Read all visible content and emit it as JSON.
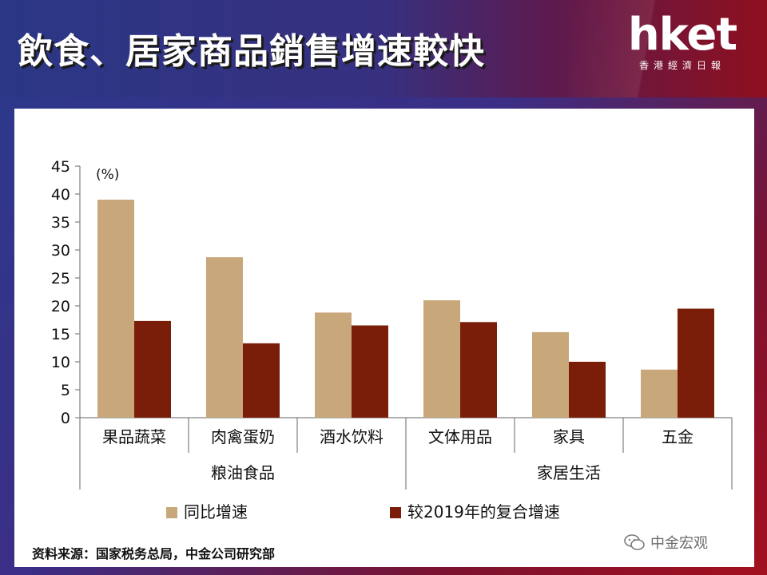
{
  "header": {
    "title": "飲食、居家商品銷售增速較快",
    "logo_text": "hket",
    "logo_sub": "香港經濟日報"
  },
  "colors": {
    "series_yoy": "#c8a77a",
    "series_cagr": "#7a1e0a",
    "axis": "#808080"
  },
  "chart_data": {
    "type": "bar",
    "unit_label": "(%)",
    "categories": [
      "果品蔬菜",
      "肉禽蛋奶",
      "酒水饮料",
      "文体用品",
      "家具",
      "五金"
    ],
    "groups": [
      {
        "label": "粮油食品",
        "categories": [
          "果品蔬菜",
          "肉禽蛋奶",
          "酒水饮料"
        ]
      },
      {
        "label": "家居生活",
        "categories": [
          "文体用品",
          "家具",
          "五金"
        ]
      }
    ],
    "series": [
      {
        "name": "同比增速",
        "values": [
          39,
          28.7,
          18.8,
          21,
          15.3,
          8.6
        ]
      },
      {
        "name": "较2019年的复合增速",
        "values": [
          17.3,
          13.3,
          16.5,
          17.1,
          10,
          19.5
        ]
      }
    ],
    "ylim": [
      0,
      45
    ],
    "yticks": [
      0,
      5,
      10,
      15,
      20,
      25,
      30,
      35,
      40,
      45
    ],
    "legend_position": "bottom",
    "grid": false
  },
  "footer": {
    "source": "资料来源：国家税务总局，中金公司研究部",
    "watermark": "中金宏观"
  }
}
